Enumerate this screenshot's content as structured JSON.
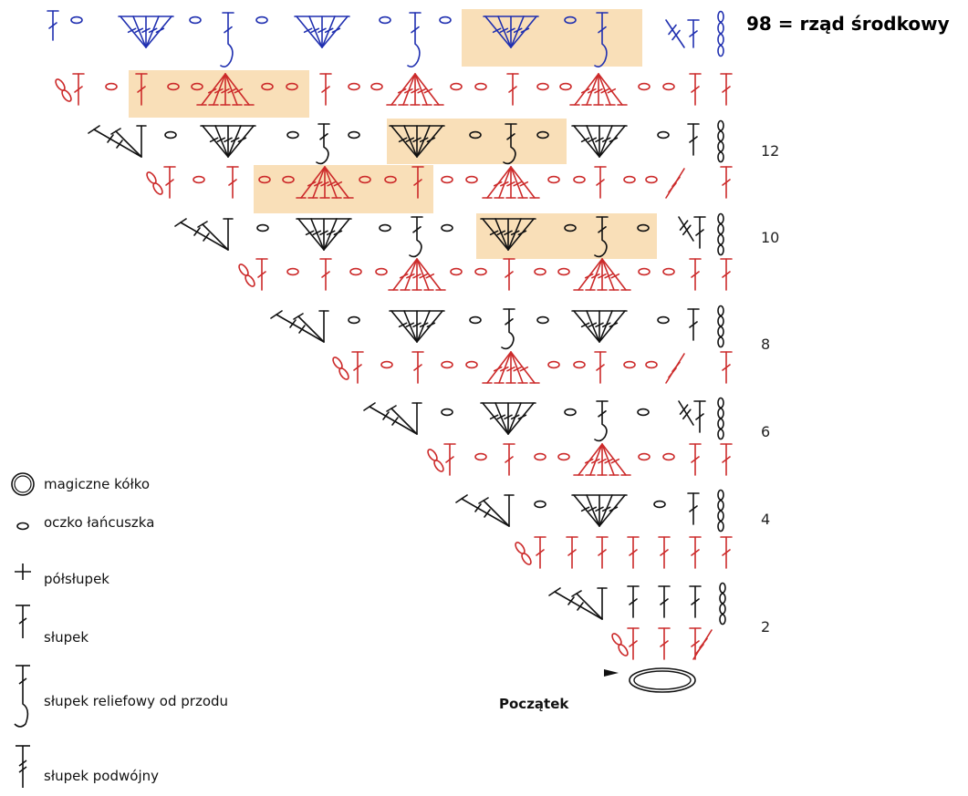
{
  "title": "98 = rząd środkowy",
  "start_label": "Początek",
  "row_labels": [
    "12",
    "10",
    "8",
    "6",
    "4",
    "2"
  ],
  "colors": {
    "red_rows": "#cc2a2a",
    "black_rows": "#111111",
    "blue_row": "#1f2fb0",
    "highlight": "#f9dfb8"
  },
  "legend": [
    {
      "icon": "magic-ring-icon",
      "label": "magiczne kółko"
    },
    {
      "icon": "chain-stitch-icon",
      "label": "oczko łańcuszka"
    },
    {
      "icon": "single-crochet-icon",
      "label": "półsłupek"
    },
    {
      "icon": "double-crochet-icon",
      "label": "słupek"
    },
    {
      "icon": "front-post-double-crochet-icon",
      "label": "słupek reliefowy od przodu"
    },
    {
      "icon": "treble-crochet-icon",
      "label": "słupek podwójny"
    }
  ]
}
